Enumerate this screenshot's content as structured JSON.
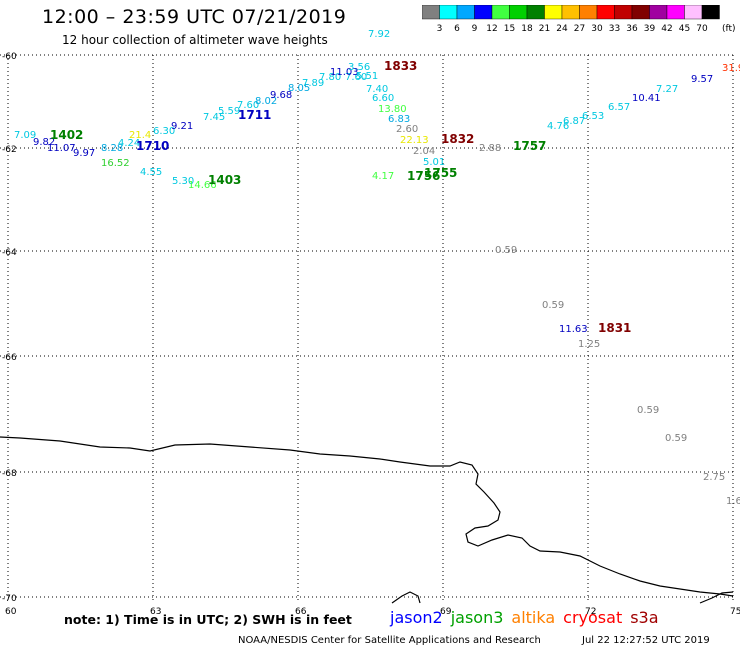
{
  "header": {
    "title": "12:00 – 23:59 UTC 07/21/2019",
    "subtitle": "12 hour collection of altimeter wave heights"
  },
  "legend": {
    "unit": "(ft)",
    "bins": [
      {
        "label": "3",
        "color": "#808080"
      },
      {
        "label": "6",
        "color": "#00ffff"
      },
      {
        "label": "9",
        "color": "#00a8ff"
      },
      {
        "label": "12",
        "color": "#0000ff"
      },
      {
        "label": "15",
        "color": "#40ff40"
      },
      {
        "label": "18",
        "color": "#00d000"
      },
      {
        "label": "21",
        "color": "#008000"
      },
      {
        "label": "24",
        "color": "#ffff00"
      },
      {
        "label": "27",
        "color": "#ffc000"
      },
      {
        "label": "30",
        "color": "#ff8000"
      },
      {
        "label": "33",
        "color": "#ff0000"
      },
      {
        "label": "36",
        "color": "#c00000"
      },
      {
        "label": "39",
        "color": "#800000"
      },
      {
        "label": "42",
        "color": "#a000a0"
      },
      {
        "label": "45",
        "color": "#ff00ff"
      },
      {
        "label": "70",
        "color": "#ffc0ff"
      },
      {
        "label": "",
        "color": "#000000"
      }
    ]
  },
  "axes": {
    "lat_labels": [
      "-60",
      "-62",
      "-64",
      "-66",
      "-68",
      "-70"
    ],
    "lon_labels": [
      "60",
      "63",
      "66",
      "69",
      "72",
      "75"
    ]
  },
  "observations": [
    {
      "text": "7.09",
      "color": "#00c8e0"
    },
    {
      "text": "9.82",
      "color": "#0000c0"
    },
    {
      "text": "1402",
      "color": "#008000"
    },
    {
      "text": "11.07",
      "color": "#0000c0"
    },
    {
      "text": "9.97",
      "color": "#0000c0"
    },
    {
      "text": "16.52",
      "color": "#30d030"
    },
    {
      "text": "8.28",
      "color": "#00a8e0"
    },
    {
      "text": "4.24",
      "color": "#00c8e0"
    },
    {
      "text": "1710",
      "color": "#0000c0"
    },
    {
      "text": "21.4",
      "color": "#e8e800"
    },
    {
      "text": "6.30",
      "color": "#00c8e0"
    },
    {
      "text": "9.21",
      "color": "#0000c0"
    },
    {
      "text": "4.55",
      "color": "#00c8e0"
    },
    {
      "text": "5.30",
      "color": "#00c8e0"
    },
    {
      "text": "14.66",
      "color": "#40ff40"
    },
    {
      "text": "1403",
      "color": "#008000"
    },
    {
      "text": "7.45",
      "color": "#00c8e0"
    },
    {
      "text": "5.59",
      "color": "#00c8e0"
    },
    {
      "text": "1711",
      "color": "#0000c0"
    },
    {
      "text": "7.60",
      "color": "#00c8e0"
    },
    {
      "text": "8.02",
      "color": "#00a8e0"
    },
    {
      "text": "9.68",
      "color": "#0000c0"
    },
    {
      "text": "8.05",
      "color": "#00a8e0"
    },
    {
      "text": "7.89",
      "color": "#00c8e0"
    },
    {
      "text": "7.80",
      "color": "#00c8e0"
    },
    {
      "text": "7.60",
      "color": "#00c8e0"
    },
    {
      "text": "11.03",
      "color": "#0000c0"
    },
    {
      "text": "7.92",
      "color": "#00c8e0"
    },
    {
      "text": "3.56",
      "color": "#00c8e0"
    },
    {
      "text": "5.51",
      "color": "#00c8e0"
    },
    {
      "text": "1833",
      "color": "#800000"
    },
    {
      "text": "7.40",
      "color": "#00c8e0"
    },
    {
      "text": "6.60",
      "color": "#00c8e0"
    },
    {
      "text": "13.80",
      "color": "#40ff40"
    },
    {
      "text": "6.83",
      "color": "#00a8e0"
    },
    {
      "text": "2.60",
      "color": "#808080"
    },
    {
      "text": "22.13",
      "color": "#e8e800"
    },
    {
      "text": "1832",
      "color": "#800000"
    },
    {
      "text": "2.04",
      "color": "#808080"
    },
    {
      "text": "5.01",
      "color": "#00c8e0"
    },
    {
      "text": "4.17",
      "color": "#40ff40"
    },
    {
      "text": "1756",
      "color": "#008000"
    },
    {
      "text": "1755",
      "color": "#008000"
    },
    {
      "text": "2.88",
      "color": "#808080"
    },
    {
      "text": "1757",
      "color": "#008000"
    },
    {
      "text": "4.76",
      "color": "#00c8e0"
    },
    {
      "text": "6.87",
      "color": "#00c8e0"
    },
    {
      "text": "6.53",
      "color": "#00c8e0"
    },
    {
      "text": "6.57",
      "color": "#00c8e0"
    },
    {
      "text": "10.41",
      "color": "#0000c0"
    },
    {
      "text": "7.27",
      "color": "#00c8e0"
    },
    {
      "text": "9.57",
      "color": "#0000c0"
    },
    {
      "text": "31.9",
      "color": "#ff3000"
    },
    {
      "text": "0.59",
      "color": "#808080"
    },
    {
      "text": "0.59",
      "color": "#808080"
    },
    {
      "text": "11.63",
      "color": "#0000c0"
    },
    {
      "text": "1831",
      "color": "#800000"
    },
    {
      "text": "1.25",
      "color": "#808080"
    },
    {
      "text": "0.59",
      "color": "#808080"
    },
    {
      "text": "0.59",
      "color": "#808080"
    },
    {
      "text": "2.75",
      "color": "#808080"
    },
    {
      "text": "1.6",
      "color": "#808080"
    }
  ],
  "footer": {
    "note": "note:  1) Time is in UTC; 2) SWH is in feet",
    "satellites": [
      {
        "name": "jason2",
        "color": "#0000ff"
      },
      {
        "name": "jason3",
        "color": "#00a000"
      },
      {
        "name": "altika",
        "color": "#ff8000"
      },
      {
        "name": "cryosat",
        "color": "#ff0000"
      },
      {
        "name": "s3a",
        "color": "#a00000"
      }
    ],
    "credit": "NOAA/NESDIS Center for Satellite Applications and Research",
    "timestamp": "Jul 22 12:27:52 UTC 2019"
  }
}
